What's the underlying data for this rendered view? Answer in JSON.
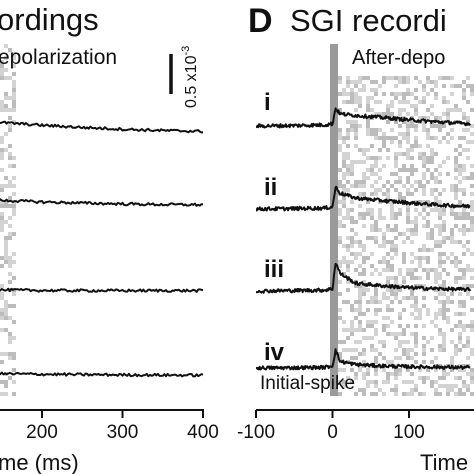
{
  "panels": {
    "left": {
      "title_fragment": "ordings",
      "label": "epolarization",
      "xlabel_fragment": "me (ms)",
      "scalebar_label": "0.5 x10",
      "scalebar_exp": "-3"
    },
    "right": {
      "letter": "D",
      "title": "SGI recordi",
      "label": "After-depo",
      "stim_label": "Initial-spike",
      "xlabel_fragment": "Time"
    }
  },
  "colors": {
    "trace": "#111111",
    "stim_bar": "#9a9a9a",
    "noise_light": "#d3d3d3",
    "noise_mid": "#bcbcbc"
  },
  "chart_data": [
    {
      "type": "line",
      "panel": "left",
      "xlabel": "me (ms)",
      "ylabel": "",
      "x_ticks": [
        200,
        300,
        400
      ],
      "xlim": [
        70,
        400
      ],
      "series": [
        {
          "x": [
            70,
            100,
            150,
            200,
            250,
            300,
            350,
            400
          ],
          "values": [
            -0.05,
            -0.18,
            -0.3,
            -0.42,
            -0.52,
            -0.6,
            -0.66,
            -0.7
          ]
        },
        {
          "x": [
            70,
            100,
            150,
            200,
            250,
            300,
            350,
            400
          ],
          "values": [
            -0.05,
            -0.12,
            -0.2,
            -0.27,
            -0.32,
            -0.36,
            -0.39,
            -0.4
          ]
        },
        {
          "x": [
            70,
            100,
            150,
            200,
            250,
            300,
            350,
            400
          ],
          "values": [
            -0.03,
            -0.06,
            -0.09,
            -0.11,
            -0.12,
            -0.12,
            -0.12,
            -0.12
          ]
        },
        {
          "x": [
            70,
            100,
            150,
            200,
            250,
            300,
            350,
            400
          ],
          "values": [
            -0.02,
            -0.05,
            -0.08,
            -0.1,
            -0.12,
            -0.13,
            -0.14,
            -0.15
          ]
        }
      ]
    },
    {
      "type": "line",
      "panel": "right",
      "xlabel": "Time",
      "ylabel": "",
      "x_ticks": [
        -100,
        0,
        100
      ],
      "xlim": [
        -100,
        180
      ],
      "stimulus_x": 0,
      "series": [
        {
          "name": "i",
          "x": [
            -100,
            -50,
            -10,
            0,
            4,
            10,
            30,
            60,
            100,
            140,
            180
          ],
          "values": [
            0,
            0.02,
            0.05,
            0.1,
            0.8,
            0.55,
            0.48,
            0.4,
            0.28,
            0.18,
            0.1
          ]
        },
        {
          "name": "ii",
          "x": [
            -100,
            -50,
            -10,
            0,
            4,
            10,
            30,
            60,
            100,
            140,
            180
          ],
          "values": [
            0,
            0.02,
            0.04,
            0.1,
            1.0,
            0.72,
            0.5,
            0.4,
            0.28,
            0.18,
            0.12
          ]
        },
        {
          "name": "iii",
          "x": [
            -100,
            -50,
            -10,
            0,
            4,
            10,
            30,
            60,
            100,
            140,
            180
          ],
          "values": [
            0,
            0.02,
            0.04,
            0.1,
            1.3,
            0.8,
            0.35,
            0.25,
            0.15,
            0.1,
            0.06
          ]
        },
        {
          "name": "iv",
          "x": [
            -100,
            -50,
            -10,
            0,
            4,
            10,
            30,
            60,
            100,
            140,
            180
          ],
          "values": [
            0,
            0.01,
            0.03,
            0.1,
            0.8,
            0.3,
            0.16,
            0.1,
            0.06,
            0.04,
            0.02
          ]
        }
      ]
    }
  ]
}
